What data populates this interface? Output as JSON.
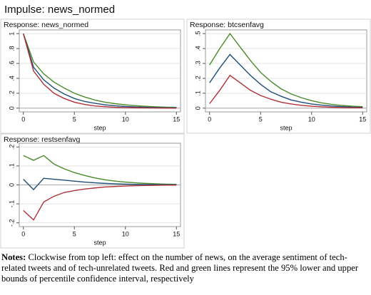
{
  "title": "Impulse: news_normed",
  "chart_data": [
    {
      "type": "line",
      "title": "Response: news_normed",
      "x_label": "step",
      "x": [
        0,
        1,
        2,
        3,
        4,
        5,
        6,
        7,
        8,
        9,
        10,
        11,
        12,
        13,
        14,
        15
      ],
      "xlim": [
        -0.4,
        15.4
      ],
      "xticks": [
        0,
        5,
        10,
        15
      ],
      "ylim": [
        -0.05,
        1.05
      ],
      "yticks": [
        0,
        {
          "value": 0.2,
          "label": ".2"
        },
        {
          "value": 0.4,
          "label": ".4"
        },
        {
          "value": 0.6,
          "label": ".6"
        },
        {
          "value": 0.8,
          "label": ".8"
        },
        1
      ],
      "grid": true,
      "series": [
        {
          "color": "#4a8a2a",
          "values": [
            1,
            0.62,
            0.46,
            0.35,
            0.27,
            0.2,
            0.15,
            0.11,
            0.08,
            0.06,
            0.045,
            0.033,
            0.024,
            0.018,
            0.013,
            0.01
          ]
        },
        {
          "color": "#1f4e79",
          "values": [
            1,
            0.55,
            0.38,
            0.27,
            0.19,
            0.13,
            0.09,
            0.065,
            0.045,
            0.032,
            0.022,
            0.016,
            0.011,
            0.008,
            0.005,
            0.004
          ]
        },
        {
          "color": "#b0303a",
          "values": [
            1,
            0.5,
            0.32,
            0.2,
            0.13,
            0.08,
            0.05,
            0.03,
            0.02,
            0.012,
            0.008,
            0.005,
            0.003,
            0.002,
            0.001,
            0.0
          ]
        }
      ]
    },
    {
      "type": "line",
      "title": "Response: btcsenfavg",
      "x_label": "step",
      "x": [
        0,
        1,
        2,
        3,
        4,
        5,
        6,
        7,
        8,
        9,
        10,
        11,
        12,
        13,
        14,
        15
      ],
      "xlim": [
        -0.4,
        15.4
      ],
      "xticks": [
        0,
        5,
        10,
        15
      ],
      "ylim": [
        -0.025,
        0.525
      ],
      "yticks": [
        0,
        {
          "value": 0.1,
          "label": ".1"
        },
        {
          "value": 0.2,
          "label": ".2"
        },
        {
          "value": 0.3,
          "label": ".3"
        },
        {
          "value": 0.4,
          "label": ".4"
        },
        {
          "value": 0.5,
          "label": ".5"
        }
      ],
      "grid": true,
      "series": [
        {
          "color": "#4a8a2a",
          "values": [
            0.29,
            0.4,
            0.5,
            0.41,
            0.32,
            0.24,
            0.18,
            0.13,
            0.095,
            0.07,
            0.05,
            0.035,
            0.025,
            0.018,
            0.013,
            0.01
          ]
        },
        {
          "color": "#1f4e79",
          "values": [
            0.17,
            0.27,
            0.36,
            0.29,
            0.22,
            0.16,
            0.11,
            0.08,
            0.055,
            0.04,
            0.028,
            0.02,
            0.014,
            0.01,
            0.007,
            0.005
          ]
        },
        {
          "color": "#b0303a",
          "values": [
            0.03,
            0.12,
            0.22,
            0.17,
            0.12,
            0.085,
            0.06,
            0.04,
            0.028,
            0.019,
            0.013,
            0.009,
            0.006,
            0.004,
            0.003,
            0.002
          ]
        }
      ]
    },
    {
      "type": "line",
      "title": "Response: restsenfavg",
      "x_label": "step",
      "x": [
        0,
        1,
        2,
        3,
        4,
        5,
        6,
        7,
        8,
        9,
        10,
        11,
        12,
        13,
        14,
        15
      ],
      "xlim": [
        -0.4,
        15.4
      ],
      "xticks": [
        0,
        5,
        10,
        15
      ],
      "ylim": [
        -0.22,
        0.22
      ],
      "yticks": [
        {
          "value": -0.2,
          "label": "-.2"
        },
        {
          "value": -0.1,
          "label": "-.1"
        },
        0,
        {
          "value": 0.1,
          "label": ".1"
        },
        {
          "value": 0.2,
          "label": ".2"
        }
      ],
      "grid": true,
      "series": [
        {
          "color": "#4a8a2a",
          "values": [
            0.155,
            0.13,
            0.155,
            0.11,
            0.085,
            0.065,
            0.05,
            0.037,
            0.027,
            0.02,
            0.015,
            0.011,
            0.008,
            0.006,
            0.004,
            0.003
          ]
        },
        {
          "color": "#1f4e79",
          "values": [
            0.03,
            -0.025,
            0.035,
            0.03,
            0.025,
            0.02,
            0.015,
            0.011,
            0.008,
            0.006,
            0.004,
            0.003,
            0.002,
            0.0015,
            0.001,
            0.001
          ]
        },
        {
          "color": "#b0303a",
          "values": [
            -0.135,
            -0.185,
            -0.09,
            -0.06,
            -0.04,
            -0.03,
            -0.022,
            -0.016,
            -0.011,
            -0.008,
            -0.006,
            -0.004,
            -0.003,
            -0.002,
            -0.001,
            -0.001
          ]
        }
      ]
    }
  ],
  "notes": {
    "label": "Notes:",
    "text": "Clockwise from top left: effect on the number of news, on the average sentiment of tech-related tweets and of tech-unrelated tweets. Red and green lines represent the 95% lower and upper bounds of percentile confidence interval, respectively"
  }
}
